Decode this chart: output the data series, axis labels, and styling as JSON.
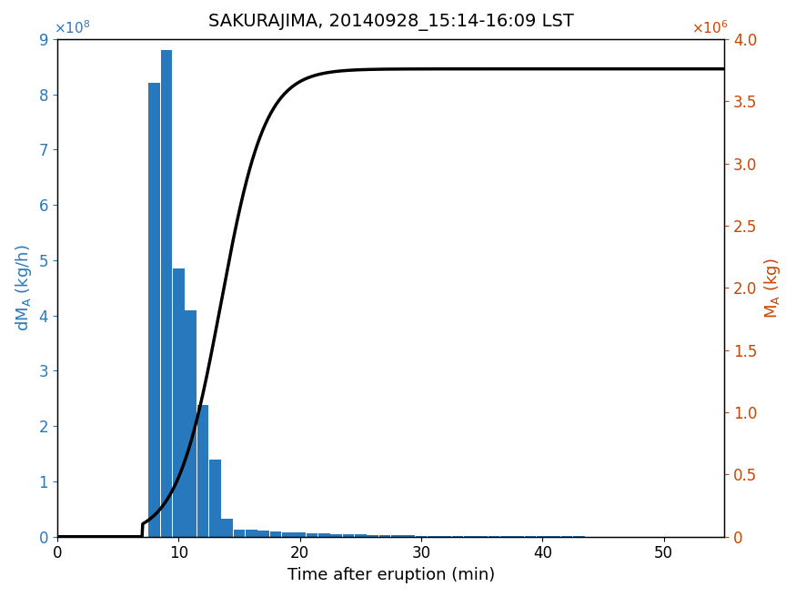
{
  "title": "SAKURAJIMA, 20140928_15:14-16:09 LST",
  "xlabel": "Time after eruption (min)",
  "ylabel_left": "dM_A (kg/h)",
  "ylabel_right": "M_A (kg)",
  "bar_color": "#2878BD",
  "line_color": "#000000",
  "left_axis_color": "#2878BD",
  "right_axis_color": "#CC4400",
  "bar_centers": [
    8,
    9,
    10,
    11,
    12,
    13,
    14,
    15,
    16,
    17,
    18,
    19,
    20,
    21,
    22,
    23,
    24,
    25,
    26,
    27,
    28,
    29,
    30,
    31,
    32,
    33,
    34,
    35,
    36,
    37,
    38,
    39,
    40,
    41,
    42,
    43,
    44,
    45,
    46,
    47,
    48,
    49,
    50,
    51,
    52,
    53,
    54,
    55
  ],
  "bar_heights": [
    820000000.0,
    880000000.0,
    485000000.0,
    410000000.0,
    238000000.0,
    140000000.0,
    32000000.0,
    12000000.0,
    13000000.0,
    11000000.0,
    9500000.0,
    8500000.0,
    7500000.0,
    6500000.0,
    5500000.0,
    5000000.0,
    4500000.0,
    4000000.0,
    3500000.0,
    3000000.0,
    2500000.0,
    2200000.0,
    2000000.0,
    1800000.0,
    1500000.0,
    1300000.0,
    1100000.0,
    1000000.0,
    900000.0,
    800000.0,
    700000.0,
    600000.0,
    500000.0,
    500000.0,
    400000.0,
    400000.0,
    300000.0,
    300000.0,
    200000.0,
    200000.0,
    200000.0,
    150000.0,
    150000.0,
    100000.0,
    100000.0,
    100000.0,
    50000.0,
    50000.0
  ],
  "bar_width": 0.95,
  "ylim_left": [
    0,
    900000000.0
  ],
  "ylim_right": [
    0,
    4000000.0
  ],
  "xlim": [
    0,
    55
  ],
  "yticks_left": [
    0,
    100000000.0,
    200000000.0,
    300000000.0,
    400000000.0,
    500000000.0,
    600000000.0,
    700000000.0,
    800000000.0,
    900000000.0
  ],
  "yticks_right": [
    0,
    500000.0,
    1000000.0,
    1500000.0,
    2000000.0,
    2500000.0,
    3000000.0,
    3500000.0,
    4000000.0
  ],
  "xticks": [
    0,
    10,
    20,
    30,
    40,
    50
  ],
  "title_fontsize": 14,
  "label_fontsize": 13,
  "tick_fontsize": 12,
  "line_total": 3760000.0,
  "line_start": 7.0,
  "line_k1": 0.55,
  "line_t_inflect": 13.5
}
